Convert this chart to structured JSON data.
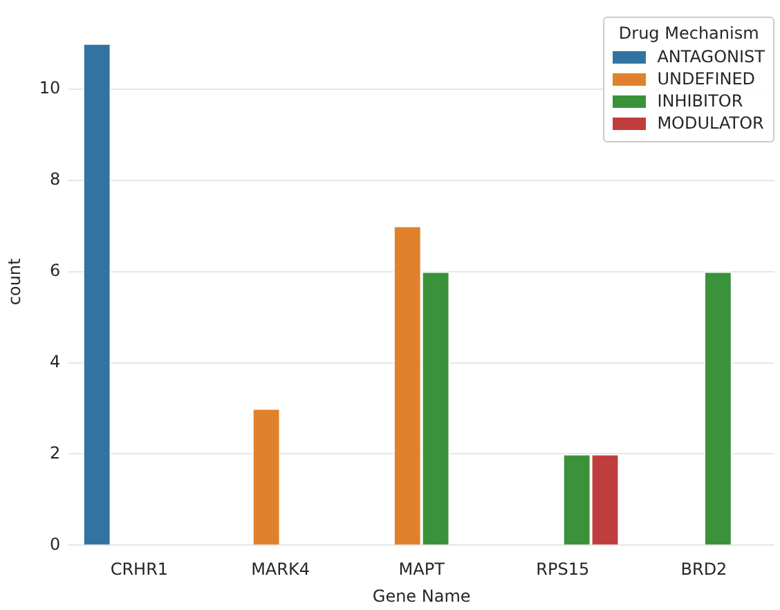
{
  "chart_data": {
    "type": "bar",
    "xlabel": "Gene Name",
    "ylabel": "count",
    "legend_title": "Drug Mechanism",
    "legend": "top right",
    "grid": "y",
    "categories": [
      "CRHR1",
      "MARK4",
      "MAPT",
      "RPS15",
      "BRD2"
    ],
    "ylim": [
      0,
      11.55
    ],
    "yticks": [
      0,
      2,
      4,
      6,
      8,
      10
    ],
    "series": [
      {
        "name": "ANTAGONIST",
        "color": "#3274a1",
        "values": [
          11,
          null,
          null,
          null,
          null
        ]
      },
      {
        "name": "UNDEFINED",
        "color": "#e1812c",
        "values": [
          null,
          3,
          7,
          null,
          null
        ]
      },
      {
        "name": "INHIBITOR",
        "color": "#3a923a",
        "values": [
          null,
          null,
          6,
          2,
          6
        ]
      },
      {
        "name": "MODULATOR",
        "color": "#c03d3e",
        "values": [
          null,
          null,
          null,
          2,
          null
        ]
      }
    ]
  }
}
